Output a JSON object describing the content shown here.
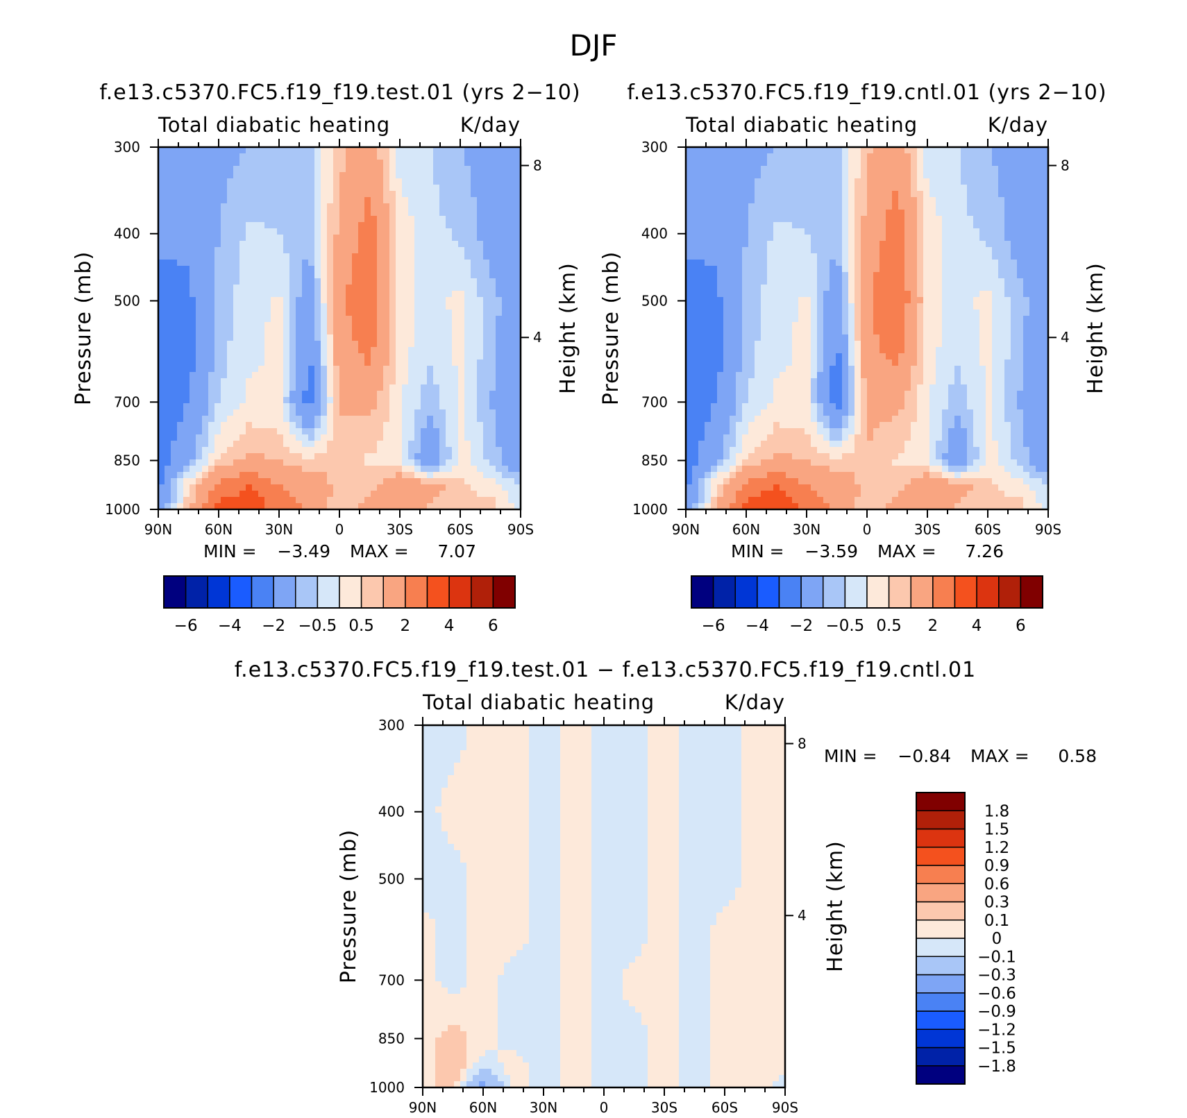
{
  "page_title": "DJF",
  "panels": [
    {
      "title": "f.e13.c5370.FC5.f19_f19.test.01 (yrs 2−10)",
      "subtitle_left": "Total diabatic heating",
      "subtitle_right": "K/day",
      "min_text": "MIN =",
      "min_value": "−3.49",
      "max_text": "MAX =",
      "max_value": "7.07"
    },
    {
      "title": "f.e13.c5370.FC5.f19_f19.cntl.01 (yrs 2−10)",
      "subtitle_left": "Total diabatic heating",
      "subtitle_right": "K/day",
      "min_text": "MIN =",
      "min_value": "−3.59",
      "max_text": "MAX =",
      "max_value": "7.26"
    },
    {
      "title": "f.e13.c5370.FC5.f19_f19.test.01 − f.e13.c5370.FC5.f19_f19.cntl.01",
      "subtitle_left": "Total diabatic heating",
      "subtitle_right": "K/day",
      "min_text": "MIN =",
      "min_value": "−0.84",
      "max_text": "MAX =",
      "max_value": "0.58"
    }
  ],
  "axes": {
    "ylabel_left": "Pressure (mb)",
    "ylabel_right": "Height (km)",
    "pressure_ticks": [
      "300",
      "400",
      "500",
      "700",
      "850",
      "1000"
    ],
    "height_ticks": [
      "8",
      "4"
    ],
    "lat_ticks": [
      "90N",
      "60N",
      "30N",
      "0",
      "30S",
      "60S",
      "90S"
    ]
  },
  "colorbar_main": {
    "colors": [
      "#00007f",
      "#0022a8",
      "#0036d6",
      "#1a5cff",
      "#4a82f4",
      "#7ea5f5",
      "#a9c6f7",
      "#d6e7f9",
      "#fde9da",
      "#fcc8ae",
      "#f9a581",
      "#f77f50",
      "#f4511e",
      "#dc3410",
      "#b02009",
      "#800000"
    ],
    "labels": [
      "−6",
      "−4",
      "−2",
      "−0.5",
      "0.5",
      "2",
      "4",
      "6"
    ]
  },
  "colorbar_diff": {
    "colors": [
      "#00007f",
      "#0022a8",
      "#0036d6",
      "#1a5cff",
      "#4a82f4",
      "#7ea5f5",
      "#a9c6f7",
      "#d6e7f9",
      "#fde9da",
      "#fcc8ae",
      "#f9a581",
      "#f77f50",
      "#f4511e",
      "#dc3410",
      "#b02009",
      "#800000"
    ],
    "labels": [
      "1.8",
      "1.5",
      "1.2",
      "0.9",
      "0.6",
      "0.3",
      "0.1",
      "0",
      "−0.1",
      "−0.3",
      "−0.6",
      "−0.9",
      "−1.2",
      "−1.5",
      "−1.8"
    ]
  },
  "chart_data": [
    {
      "type": "heatmap",
      "title": "f.e13.c5370.FC5.f19_f19.test.01 (yrs 2−10)",
      "variable": "Total diabatic heating",
      "units": "K/day",
      "x": [
        90,
        75,
        60,
        45,
        30,
        15,
        0,
        -15,
        -30,
        -45,
        -60,
        -75,
        -90
      ],
      "x_unit": "latitude (N positive)",
      "y": [
        300,
        400,
        500,
        600,
        700,
        850,
        925,
        1000
      ],
      "y_unit": "mb",
      "z": [
        [
          -1.5,
          -1.5,
          -1.2,
          -1.0,
          -0.8,
          -0.6,
          0.8,
          1.5,
          -0.3,
          -0.5,
          -1.0,
          -1.2,
          -1.2
        ],
        [
          -1.8,
          -1.8,
          -1.0,
          -0.4,
          -0.5,
          -0.8,
          1.2,
          2.5,
          0.4,
          -0.3,
          -0.6,
          -1.3,
          -1.5
        ],
        [
          -2.4,
          -2.2,
          -0.8,
          -0.2,
          0.1,
          -1.6,
          1.8,
          2.8,
          0.4,
          -0.3,
          0.2,
          -0.8,
          -1.5
        ],
        [
          -2.6,
          -2.3,
          -0.7,
          -0.1,
          0.1,
          -2.2,
          1.5,
          2.2,
          0.2,
          -0.4,
          0.1,
          -0.8,
          -1.6
        ],
        [
          -2.6,
          -2.0,
          -0.5,
          0.1,
          0.1,
          -2.4,
          1.0,
          1.2,
          0.1,
          -0.8,
          0.1,
          -1.0,
          -1.8
        ],
        [
          -2.5,
          -1.2,
          0.6,
          1.2,
          1.0,
          0.6,
          1.0,
          0.4,
          0.2,
          -2.0,
          0.3,
          -0.6,
          -1.8
        ],
        [
          -2.2,
          0.5,
          2.2,
          3.0,
          2.0,
          1.5,
          0.8,
          0.8,
          1.8,
          1.4,
          0.6,
          0.3,
          -0.5
        ],
        [
          -1.5,
          0.8,
          3.5,
          3.8,
          2.6,
          1.8,
          0.6,
          1.2,
          1.6,
          0.9,
          0.5,
          0.8,
          -0.2
        ]
      ],
      "min": -3.49,
      "max": 7.07,
      "levels": [
        -6,
        -5,
        -4,
        -3,
        -2,
        -1,
        -0.5,
        0,
        0.5,
        1,
        2,
        3,
        4,
        5,
        6
      ]
    },
    {
      "type": "heatmap",
      "title": "f.e13.c5370.FC5.f19_f19.cntl.01 (yrs 2−10)",
      "variable": "Total diabatic heating",
      "units": "K/day",
      "x": [
        90,
        75,
        60,
        45,
        30,
        15,
        0,
        -15,
        -30,
        -45,
        -60,
        -75,
        -90
      ],
      "x_unit": "latitude (N positive)",
      "y": [
        300,
        400,
        500,
        600,
        700,
        850,
        925,
        1000
      ],
      "y_unit": "mb",
      "z": [
        [
          -1.5,
          -1.5,
          -1.2,
          -1.0,
          -0.8,
          -0.6,
          0.9,
          1.6,
          -0.3,
          -0.5,
          -1.0,
          -1.2,
          -1.2
        ],
        [
          -1.8,
          -1.8,
          -1.0,
          -0.4,
          -0.5,
          -0.8,
          1.3,
          2.6,
          0.4,
          -0.3,
          -0.6,
          -1.3,
          -1.5
        ],
        [
          -2.4,
          -2.2,
          -0.8,
          -0.2,
          0.1,
          -1.7,
          1.9,
          2.9,
          0.4,
          -0.3,
          0.2,
          -0.8,
          -1.5
        ],
        [
          -2.6,
          -2.3,
          -0.7,
          -0.1,
          0.1,
          -2.3,
          1.6,
          2.3,
          0.2,
          -0.4,
          0.1,
          -0.8,
          -1.6
        ],
        [
          -2.6,
          -2.0,
          -0.5,
          0.1,
          0.1,
          -2.5,
          1.1,
          1.2,
          0.1,
          -0.8,
          0.1,
          -1.0,
          -1.8
        ],
        [
          -2.5,
          -1.2,
          0.6,
          1.2,
          1.0,
          0.6,
          1.0,
          0.4,
          0.2,
          -2.0,
          0.3,
          -0.6,
          -1.8
        ],
        [
          -2.2,
          0.5,
          2.3,
          3.1,
          2.0,
          1.5,
          0.8,
          0.8,
          1.8,
          1.4,
          0.6,
          0.3,
          -0.5
        ],
        [
          -1.5,
          0.8,
          3.6,
          3.9,
          2.6,
          1.8,
          0.6,
          1.2,
          1.6,
          0.9,
          0.5,
          0.8,
          -0.2
        ]
      ],
      "min": -3.59,
      "max": 7.26,
      "levels": [
        -6,
        -5,
        -4,
        -3,
        -2,
        -1,
        -0.5,
        0,
        0.5,
        1,
        2,
        3,
        4,
        5,
        6
      ]
    },
    {
      "type": "heatmap",
      "title": "f.e13.c5370.FC5.f19_f19.test.01 − f.e13.c5370.FC5.f19_f19.cntl.01",
      "variable": "Total diabatic heating",
      "units": "K/day",
      "x": [
        90,
        75,
        60,
        45,
        30,
        15,
        0,
        -15,
        -30,
        -45,
        -60,
        -75,
        -90
      ],
      "x_unit": "latitude (N positive)",
      "y": [
        300,
        400,
        500,
        600,
        700,
        850,
        925,
        1000
      ],
      "y_unit": "mb",
      "z": [
        [
          -0.05,
          -0.05,
          0.05,
          0.05,
          -0.05,
          0.05,
          -0.05,
          -0.05,
          0.05,
          -0.05,
          -0.05,
          0.05,
          0.05
        ],
        [
          -0.05,
          0.05,
          0.05,
          0.05,
          -0.05,
          0.05,
          -0.05,
          -0.05,
          0.05,
          -0.05,
          -0.05,
          0.05,
          0.05
        ],
        [
          -0.05,
          -0.05,
          0.05,
          0.05,
          -0.05,
          0.05,
          -0.05,
          -0.05,
          0.05,
          -0.05,
          -0.05,
          0.05,
          0.05
        ],
        [
          0.05,
          -0.05,
          0.05,
          0.05,
          -0.05,
          0.05,
          -0.05,
          -0.05,
          0.05,
          -0.05,
          0.05,
          0.05,
          0.05
        ],
        [
          0.05,
          -0.05,
          0.05,
          -0.05,
          -0.05,
          0.05,
          -0.05,
          0.05,
          0.05,
          -0.05,
          0.05,
          0.05,
          0.05
        ],
        [
          0.05,
          0.15,
          0.05,
          -0.05,
          -0.05,
          0.05,
          -0.05,
          -0.05,
          0.05,
          -0.05,
          0.05,
          0.05,
          0.05
        ],
        [
          0.05,
          0.2,
          -0.05,
          0.05,
          -0.05,
          0.05,
          -0.05,
          -0.05,
          0.05,
          -0.05,
          0.05,
          0.05,
          0.05
        ],
        [
          0.05,
          0.15,
          -0.4,
          0.05,
          -0.05,
          0.05,
          -0.05,
          -0.05,
          0.05,
          -0.05,
          0.05,
          0.05,
          -0.05
        ]
      ],
      "min": -0.84,
      "max": 0.58,
      "levels": [
        -1.8,
        -1.5,
        -1.2,
        -0.9,
        -0.6,
        -0.3,
        -0.1,
        0,
        0.1,
        0.3,
        0.6,
        0.9,
        1.2,
        1.5,
        1.8
      ]
    }
  ]
}
